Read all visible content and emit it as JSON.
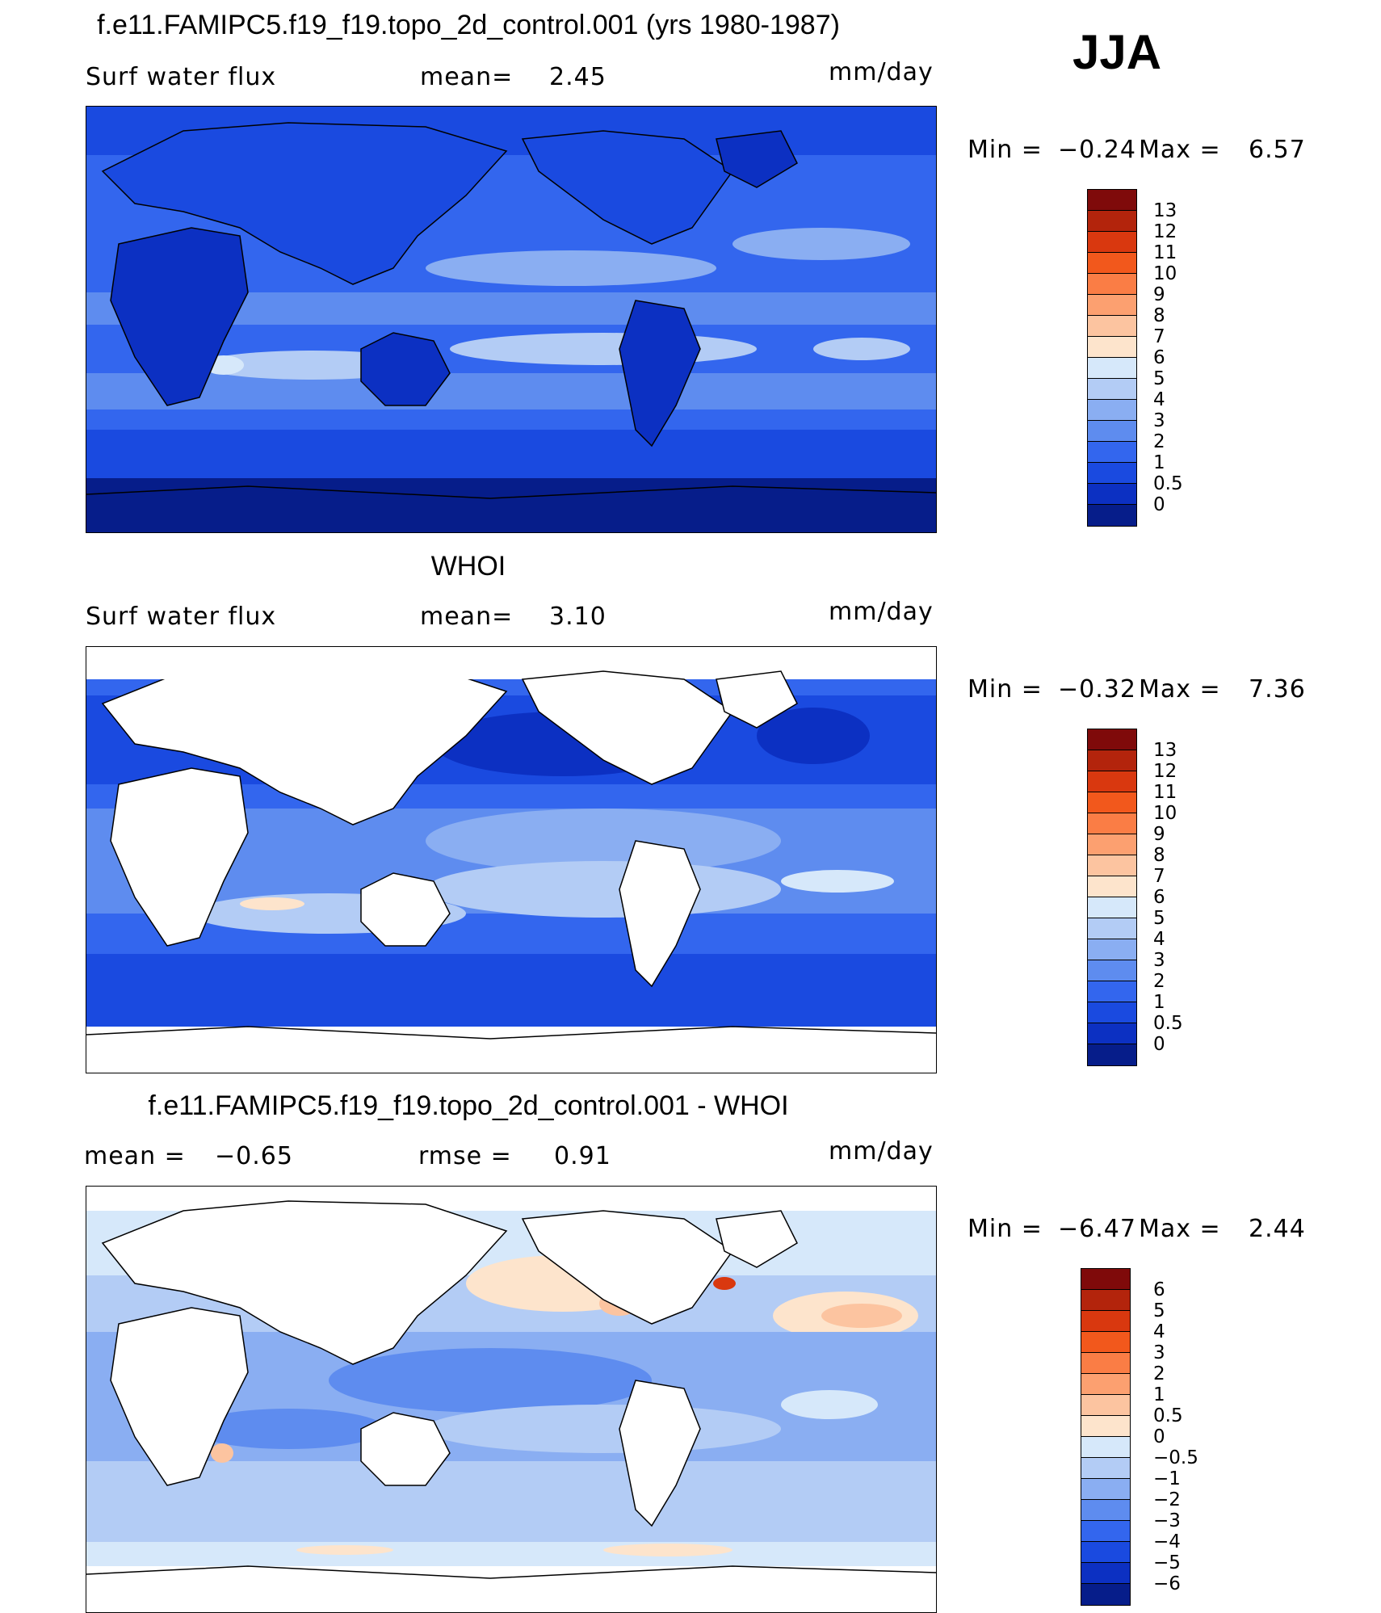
{
  "season": "JJA",
  "panels": [
    {
      "title": "f.e11.FAMIPC5.f19_f19.topo_2d_control.001 (yrs 1980-1987)",
      "left_label": "Surf  water  flux",
      "mid_label": "mean=",
      "mid_value": "2.45",
      "units": "mm/day",
      "min_label": "Min  =",
      "min_value": "−0.24",
      "max_label": "Max  =",
      "max_value": "6.57",
      "land_masked": false,
      "colorbar": {
        "labels": [
          "13",
          "12",
          "11",
          "10",
          "9",
          "8",
          "7",
          "6",
          "5",
          "4",
          "3",
          "2",
          "1",
          "0.5",
          "0"
        ],
        "colors": [
          "#7f0a0a",
          "#b3240c",
          "#d9380f",
          "#f2581c",
          "#fa7d45",
          "#fca070",
          "#fcc4a0",
          "#fde4cc",
          "#d6e8fa",
          "#b3ccf5",
          "#8aaef2",
          "#5e8cef",
          "#3366ee",
          "#1a4ae0",
          "#0c30c2",
          "#061d8a"
        ]
      }
    },
    {
      "title": "WHOI",
      "left_label": "Surf  water  flux",
      "mid_label": "mean=",
      "mid_value": "3.10",
      "units": "mm/day",
      "min_label": "Min  =",
      "min_value": "−0.32",
      "max_label": "Max  =",
      "max_value": "7.36",
      "land_masked": true,
      "colorbar": {
        "labels": [
          "13",
          "12",
          "11",
          "10",
          "9",
          "8",
          "7",
          "6",
          "5",
          "4",
          "3",
          "2",
          "1",
          "0.5",
          "0"
        ],
        "colors": [
          "#7f0a0a",
          "#b3240c",
          "#d9380f",
          "#f2581c",
          "#fa7d45",
          "#fca070",
          "#fcc4a0",
          "#fde4cc",
          "#d6e8fa",
          "#b3ccf5",
          "#8aaef2",
          "#5e8cef",
          "#3366ee",
          "#1a4ae0",
          "#0c30c2",
          "#061d8a"
        ]
      }
    },
    {
      "title": "f.e11.FAMIPC5.f19_f19.topo_2d_control.001 - WHOI",
      "left_label": "mean  =",
      "left_value": "−0.65",
      "mid_label": "rmse  =",
      "mid_value": "0.91",
      "units": "mm/day",
      "min_label": "Min  =",
      "min_value": "−6.47",
      "max_label": "Max  =",
      "max_value": "2.44",
      "land_masked": true,
      "colorbar": {
        "labels": [
          "6",
          "5",
          "4",
          "3",
          "2",
          "1",
          "0.5",
          "0",
          "−0.5",
          "−1",
          "−2",
          "−3",
          "−4",
          "−5",
          "−6"
        ],
        "colors": [
          "#7f0a0a",
          "#b3240c",
          "#d9380f",
          "#f2581c",
          "#fa7d45",
          "#fca070",
          "#fcc4a0",
          "#fde4cc",
          "#d6e8fa",
          "#b3ccf5",
          "#8aaef2",
          "#5e8cef",
          "#3366ee",
          "#1a4ae0",
          "#0c30c2",
          "#061d8a"
        ]
      }
    }
  ]
}
